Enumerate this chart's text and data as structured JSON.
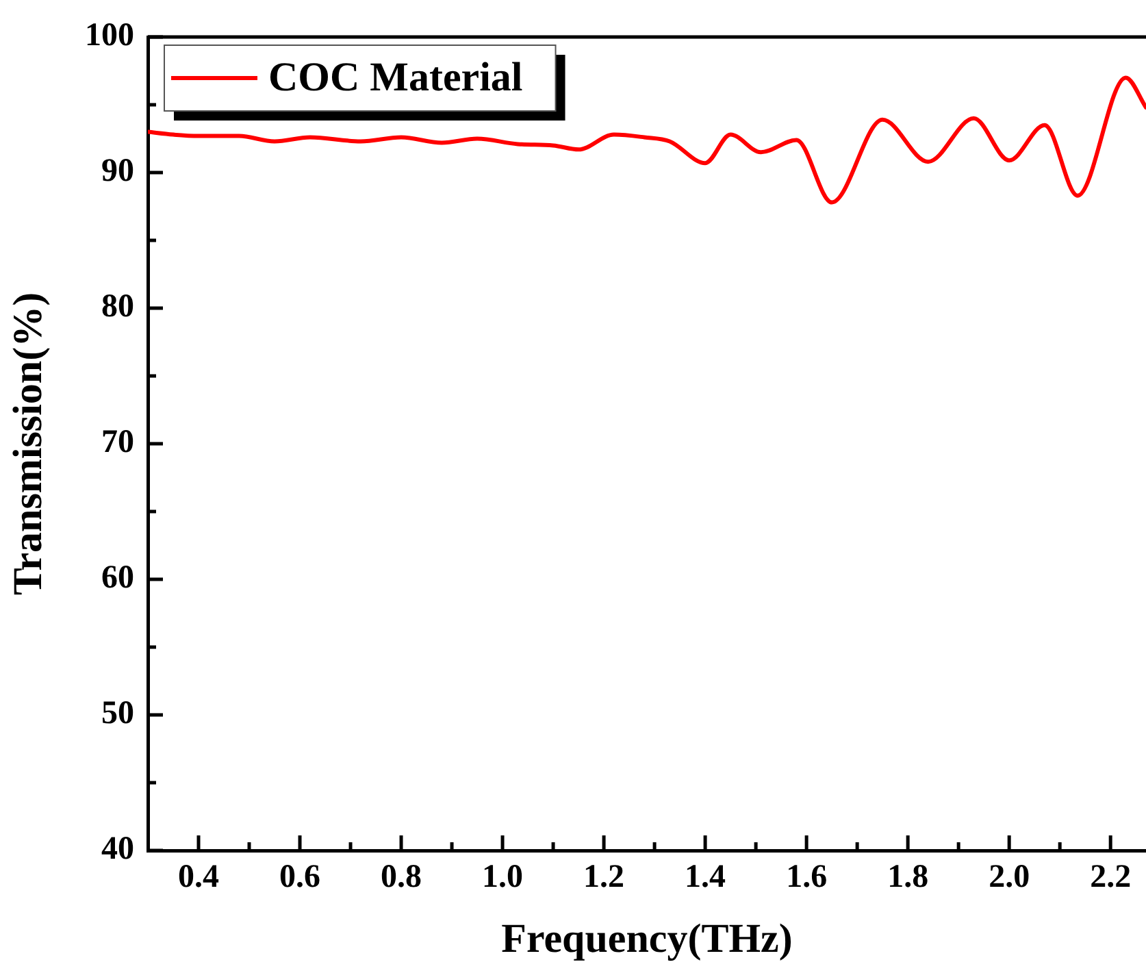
{
  "chart_data": {
    "type": "line",
    "xlabel": "Frequency(THz)",
    "ylabel": "Transmission(%)",
    "xlim": [
      0.3,
      2.27
    ],
    "ylim": [
      40,
      100
    ],
    "xticks": [
      {
        "value": 0.4,
        "label": "0.4"
      },
      {
        "value": 0.5,
        "label": null
      },
      {
        "value": 0.6,
        "label": "0.6"
      },
      {
        "value": 0.7,
        "label": null
      },
      {
        "value": 0.8,
        "label": "0.8"
      },
      {
        "value": 0.9,
        "label": null
      },
      {
        "value": 1.0,
        "label": "1.0"
      },
      {
        "value": 1.1,
        "label": null
      },
      {
        "value": 1.2,
        "label": "1.2"
      },
      {
        "value": 1.3,
        "label": null
      },
      {
        "value": 1.4,
        "label": "1.4"
      },
      {
        "value": 1.5,
        "label": null
      },
      {
        "value": 1.6,
        "label": "1.6"
      },
      {
        "value": 1.7,
        "label": null
      },
      {
        "value": 1.8,
        "label": "1.8"
      },
      {
        "value": 1.9,
        "label": null
      },
      {
        "value": 2.0,
        "label": "2.0"
      },
      {
        "value": 2.1,
        "label": null
      },
      {
        "value": 2.2,
        "label": "2.2"
      }
    ],
    "yticks": [
      40,
      {
        "value": 45,
        "label": null
      },
      50,
      {
        "value": 55,
        "label": null
      },
      60,
      {
        "value": 65,
        "label": null
      },
      70,
      {
        "value": 75,
        "label": null
      },
      80,
      {
        "value": 85,
        "label": null
      },
      90,
      {
        "value": 95,
        "label": null
      },
      100
    ],
    "grid": false,
    "legend": "top left",
    "marker": "none",
    "line_style": "solid",
    "series": [
      {
        "name": "COC Material",
        "color": "#ff0000",
        "x": [
          0.3,
          0.35,
          0.4,
          0.48,
          0.55,
          0.62,
          0.72,
          0.8,
          0.88,
          0.95,
          1.03,
          1.1,
          1.15,
          1.22,
          1.28,
          1.33,
          1.4,
          1.45,
          1.51,
          1.58,
          1.65,
          1.75,
          1.84,
          1.93,
          2.0,
          2.07,
          2.135,
          2.23,
          2.27
        ],
        "values": [
          93.0,
          92.8,
          92.7,
          92.7,
          92.3,
          92.6,
          92.3,
          92.6,
          92.2,
          92.5,
          92.1,
          92.0,
          91.7,
          92.8,
          92.6,
          92.3,
          90.7,
          92.8,
          91.5,
          92.4,
          87.8,
          93.9,
          90.8,
          94.0,
          90.9,
          93.5,
          88.3,
          97.0,
          94.8
        ]
      }
    ]
  }
}
